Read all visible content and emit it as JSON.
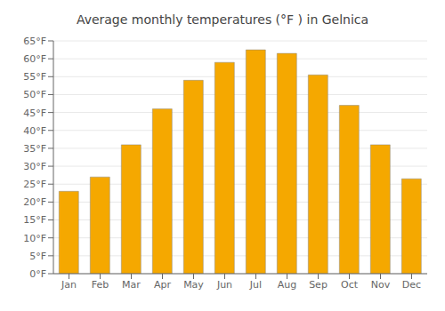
{
  "chart_data": {
    "type": "bar",
    "title": "Average monthly temperatures (°F ) in Gelnica",
    "categories": [
      "Jan",
      "Feb",
      "Mar",
      "Apr",
      "May",
      "Jun",
      "Jul",
      "Aug",
      "Sep",
      "Oct",
      "Nov",
      "Dec"
    ],
    "values": [
      23,
      27,
      36,
      46,
      54,
      59,
      62.5,
      61.5,
      55.5,
      47,
      36,
      26.5
    ],
    "color": "#F5A800",
    "ylim": [
      0,
      65
    ],
    "yticks": [
      {
        "value": 0,
        "label": "0°F"
      },
      {
        "value": 5,
        "label": "5°F"
      },
      {
        "value": 10,
        "label": "10°F"
      },
      {
        "value": 15,
        "label": "15°F"
      },
      {
        "value": 20,
        "label": "20°F"
      },
      {
        "value": 25,
        "label": "25°F"
      },
      {
        "value": 30,
        "label": "30°F"
      },
      {
        "value": 35,
        "label": "35°F"
      },
      {
        "value": 40,
        "label": "40°F"
      },
      {
        "value": 45,
        "label": "45°F"
      },
      {
        "value": 50,
        "label": "50°F"
      },
      {
        "value": 55,
        "label": "55°F"
      },
      {
        "value": 60,
        "label": "60°F"
      },
      {
        "value": 65,
        "label": "65°F"
      }
    ],
    "grid": true
  }
}
